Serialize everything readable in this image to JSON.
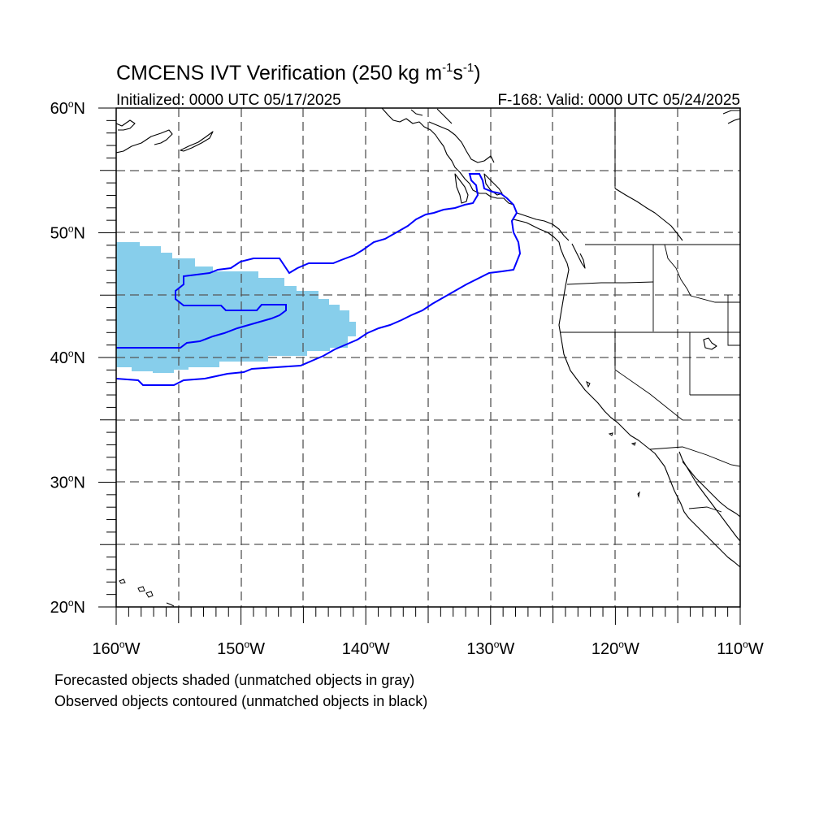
{
  "title": {
    "main": "CMCENS IVT Verification (250 kg m",
    "sup1": "-1",
    "mid": "s",
    "sup2": "-1",
    "end": ")"
  },
  "subtitle_left": "Initialized: 0000 UTC 05/17/2025",
  "subtitle_right": "F-168: Valid: 0000 UTC 05/24/2025",
  "footer": [
    "Forecasted objects shaded (unmatched objects in gray)",
    "Observed objects contoured (unmatched objects in black)"
  ],
  "map": {
    "lon_range": [
      -160,
      -110
    ],
    "lat_range": [
      20,
      60
    ],
    "grid": "dashed, every 5 degrees",
    "lon_labels": [
      "160",
      "150",
      "140",
      "130",
      "120",
      "110"
    ],
    "lat_labels": [
      "60",
      "50",
      "40",
      "30",
      "20"
    ],
    "lon_suffix": "W",
    "lat_suffix": "N",
    "degree_symbol": "o"
  },
  "colors": {
    "forecast_fill": "#87ceeb",
    "observed_contour": "#0000ff",
    "coastline": "#000000",
    "grid": "#555555"
  }
}
